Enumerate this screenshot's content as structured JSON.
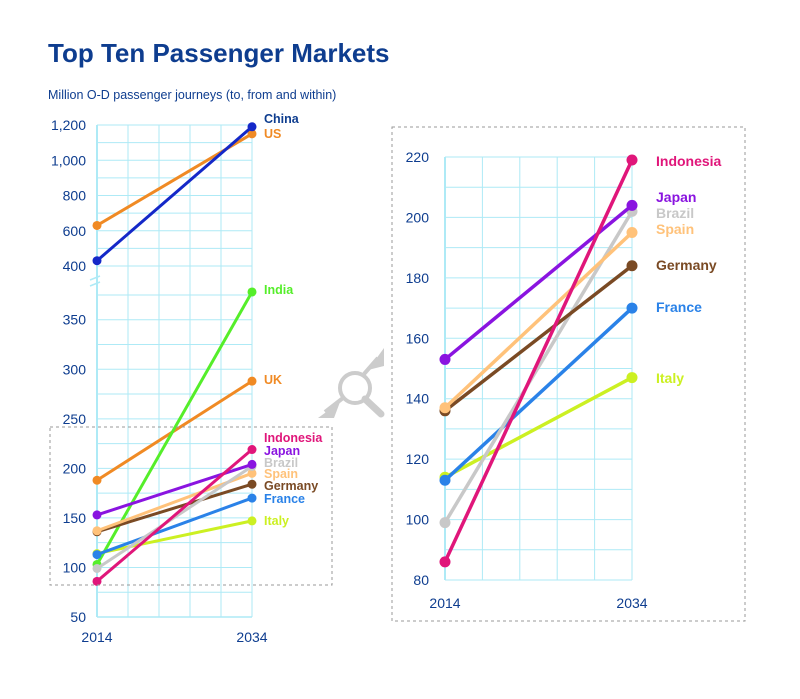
{
  "title": "Top Ten Passenger Markets",
  "subtitle": "Million O-D passenger journeys (to, from and within)",
  "chart_data": [
    {
      "type": "line",
      "name": "main",
      "title": "Top Ten Passenger Markets",
      "ylabel": "Million O-D passenger journeys (to, from and within)",
      "x": [
        "2014",
        "2034"
      ],
      "broken_axis": true,
      "y_ticks_lower": [
        "50",
        "100",
        "150",
        "200",
        "250",
        "300",
        "350"
      ],
      "y_ticks_upper": [
        "400",
        "600",
        "800",
        "1,000",
        "1,200"
      ],
      "ylim_lower": [
        50,
        380
      ],
      "ylim_upper": [
        400,
        1200
      ],
      "series": [
        {
          "name": "China",
          "values": [
            430,
            1190
          ],
          "color": "#1428c8"
        },
        {
          "name": "US",
          "values": [
            630,
            1150
          ],
          "color": "#f08a24"
        },
        {
          "name": "India",
          "values": [
            103,
            378
          ],
          "color": "#55ee2a"
        },
        {
          "name": "UK",
          "values": [
            188,
            288
          ],
          "color": "#f08a24"
        },
        {
          "name": "Indonesia",
          "values": [
            86,
            219
          ],
          "color": "#e0167a"
        },
        {
          "name": "Japan",
          "values": [
            153,
            204
          ],
          "color": "#8a14e0"
        },
        {
          "name": "Brazil",
          "values": [
            99,
            202
          ],
          "color": "#c8c8c8"
        },
        {
          "name": "Spain",
          "values": [
            137,
            195
          ],
          "color": "#ffc27a"
        },
        {
          "name": "Germany",
          "values": [
            136,
            184
          ],
          "color": "#7a4a24"
        },
        {
          "name": "France",
          "values": [
            113,
            170
          ],
          "color": "#2a82e8"
        },
        {
          "name": "Italy",
          "values": [
            114,
            147
          ],
          "color": "#ccf022"
        }
      ]
    },
    {
      "type": "line",
      "name": "zoom",
      "x": [
        "2014",
        "2034"
      ],
      "y_ticks": [
        "80",
        "100",
        "120",
        "140",
        "160",
        "180",
        "200",
        "220"
      ],
      "ylim": [
        80,
        220
      ],
      "series": [
        {
          "name": "Indonesia",
          "values": [
            86,
            219
          ],
          "color": "#e0167a"
        },
        {
          "name": "Japan",
          "values": [
            153,
            204
          ],
          "color": "#8a14e0"
        },
        {
          "name": "Brazil",
          "values": [
            99,
            202
          ],
          "color": "#c8c8c8"
        },
        {
          "name": "Spain",
          "values": [
            137,
            195
          ],
          "color": "#ffc27a"
        },
        {
          "name": "Germany",
          "values": [
            136,
            184
          ],
          "color": "#7a4a24"
        },
        {
          "name": "France",
          "values": [
            113,
            170
          ],
          "color": "#2a82e8"
        },
        {
          "name": "Italy",
          "values": [
            114,
            147
          ],
          "color": "#ccf022"
        }
      ]
    }
  ],
  "colors": {
    "brand": "#0e3d8f",
    "grid": "#aeeaf6",
    "box": "#999999",
    "magnifier": "#cccccc"
  },
  "icons": {
    "zoom": "magnifier-icon"
  }
}
